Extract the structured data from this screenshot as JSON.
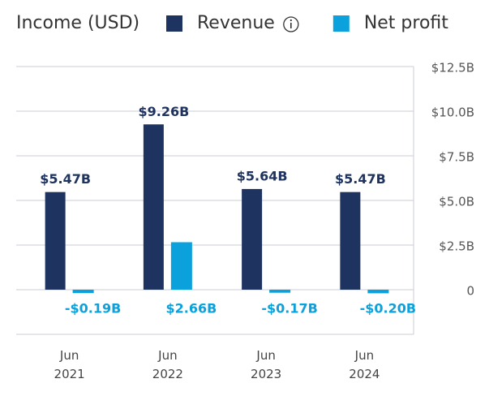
{
  "chart_data": {
    "type": "bar",
    "title": "Income (USD)",
    "categories": [
      "Jun\n2021",
      "Jun\n2022",
      "Jun\n2023",
      "Jun\n2024"
    ],
    "series": [
      {
        "name": "Revenue",
        "color": "#1f3360",
        "values": [
          5.47,
          9.26,
          5.64,
          5.47
        ],
        "value_labels": [
          "$5.47B",
          "$9.26B",
          "$5.64B",
          "$5.47B"
        ]
      },
      {
        "name": "Net profit",
        "color": "#0aa1dc",
        "values": [
          -0.19,
          2.66,
          -0.17,
          -0.2
        ],
        "value_labels": [
          "-$0.19B",
          "$2.66B",
          "-$0.17B",
          "-$0.20B"
        ]
      }
    ],
    "ylim": [
      -2.5,
      12.5
    ],
    "yticks": [
      0,
      {
        "value": 2.5,
        "label": "$2.5B"
      },
      {
        "value": 5,
        "label": "$5.0B"
      },
      {
        "value": 7.5,
        "label": "$7.5B"
      },
      {
        "value": 10,
        "label": "$10.0B"
      },
      {
        "value": 12.5,
        "label": "$12.5B"
      }
    ],
    "grid": true
  }
}
